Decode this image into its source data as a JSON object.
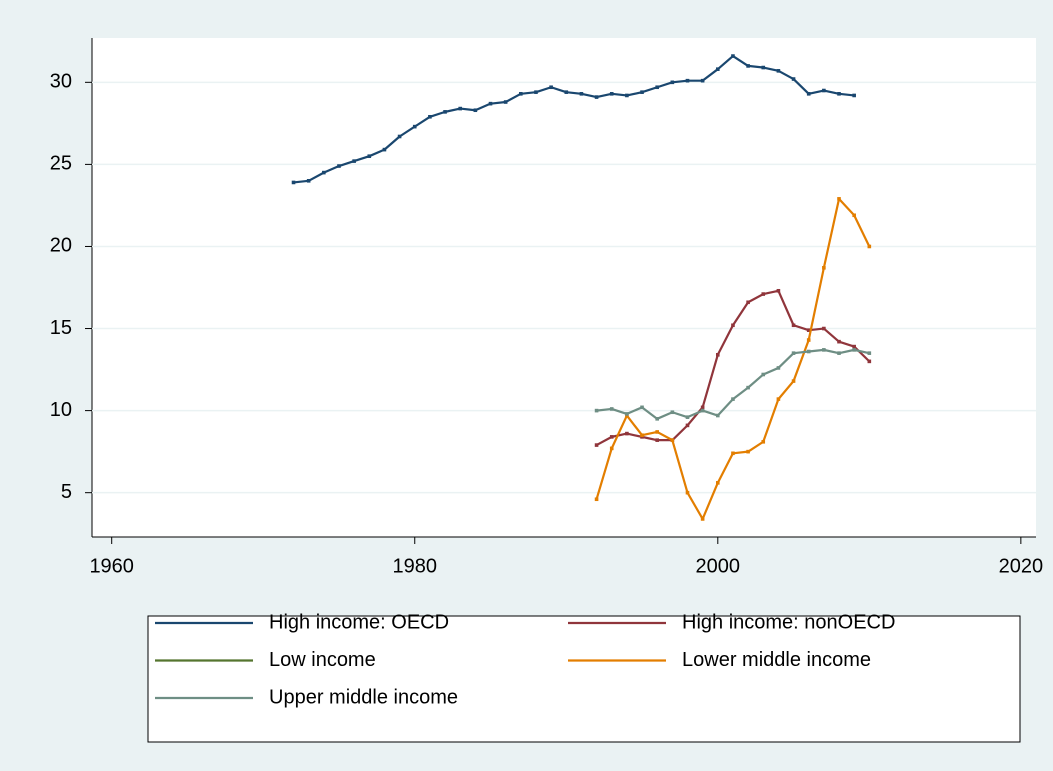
{
  "chart_data": {
    "type": "line",
    "x": [
      1972,
      1973,
      1974,
      1975,
      1976,
      1977,
      1978,
      1979,
      1980,
      1981,
      1982,
      1983,
      1984,
      1985,
      1986,
      1987,
      1988,
      1989,
      1990,
      1991,
      1992,
      1993,
      1994,
      1995,
      1996,
      1997,
      1998,
      1999,
      2000,
      2001,
      2002,
      2003,
      2004,
      2005,
      2006,
      2007,
      2008,
      2009,
      2010
    ],
    "series": [
      {
        "name": "High income: OECD",
        "color": "#1a476f",
        "values": [
          23.9,
          24.0,
          24.5,
          24.9,
          25.2,
          25.5,
          25.9,
          26.7,
          27.3,
          27.9,
          28.2,
          28.4,
          28.3,
          28.7,
          28.8,
          29.3,
          29.4,
          29.7,
          29.4,
          29.3,
          29.1,
          29.3,
          29.2,
          29.4,
          29.7,
          30.0,
          30.1,
          30.1,
          30.8,
          31.6,
          31.0,
          30.9,
          30.7,
          30.2,
          29.3,
          29.5,
          29.3,
          29.2,
          null
        ]
      },
      {
        "name": "High income: nonOECD",
        "color": "#90353b",
        "values": [
          null,
          null,
          null,
          null,
          null,
          null,
          null,
          null,
          null,
          null,
          null,
          null,
          null,
          null,
          null,
          null,
          null,
          null,
          null,
          null,
          7.9,
          8.4,
          8.6,
          8.4,
          8.2,
          8.2,
          9.1,
          10.2,
          13.4,
          15.2,
          16.6,
          17.1,
          17.3,
          15.2,
          14.9,
          15.0,
          14.2,
          13.9,
          13.0
        ]
      },
      {
        "name": "Low income",
        "color": "#55752f",
        "values": [
          null,
          null,
          null,
          null,
          null,
          null,
          null,
          null,
          null,
          null,
          null,
          null,
          null,
          null,
          null,
          null,
          null,
          null,
          null,
          null,
          null,
          null,
          null,
          null,
          null,
          null,
          null,
          null,
          null,
          null,
          null,
          null,
          null,
          null,
          null,
          null,
          null,
          null,
          null
        ]
      },
      {
        "name": "Lower middle income",
        "color": "#e37e00",
        "values": [
          null,
          null,
          null,
          null,
          null,
          null,
          null,
          null,
          null,
          null,
          null,
          null,
          null,
          null,
          null,
          null,
          null,
          null,
          null,
          null,
          4.6,
          7.7,
          9.7,
          8.5,
          8.7,
          8.2,
          5.0,
          3.4,
          5.6,
          7.4,
          7.5,
          8.1,
          10.7,
          11.8,
          14.3,
          18.7,
          22.9,
          21.9,
          20.0
        ]
      },
      {
        "name": "Upper middle income",
        "color": "#6e8e84",
        "values": [
          null,
          null,
          null,
          null,
          null,
          null,
          null,
          null,
          null,
          null,
          null,
          null,
          null,
          null,
          null,
          null,
          null,
          null,
          null,
          null,
          10.0,
          10.1,
          9.8,
          10.2,
          9.5,
          9.9,
          9.6,
          10.0,
          9.7,
          10.7,
          11.4,
          12.2,
          12.6,
          13.5,
          13.6,
          13.7,
          13.5,
          13.7,
          13.5
        ]
      }
    ],
    "xlim": [
      1958.7,
      2021
    ],
    "xticks": [
      1960,
      1980,
      2000,
      2020
    ],
    "ylim": [
      2.3,
      32.7
    ],
    "yticks": [
      5,
      10,
      15,
      20,
      25,
      30
    ],
    "grid": true
  }
}
